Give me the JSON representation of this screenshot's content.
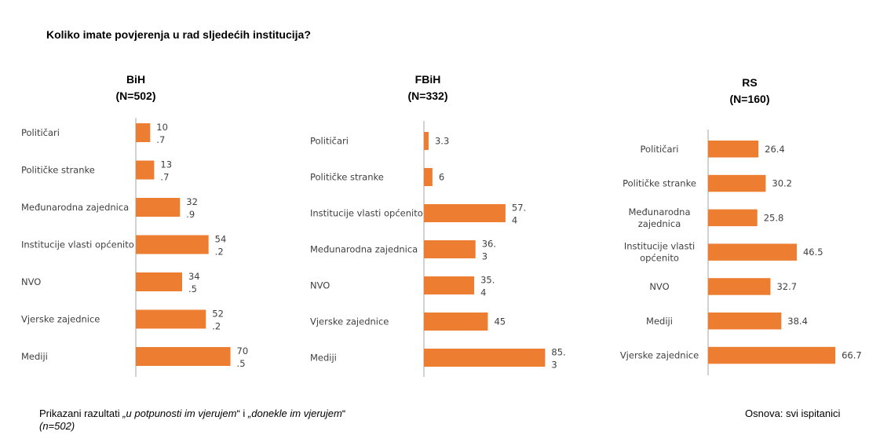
{
  "title": "Koliko imate povjerenja u rad sljedećih institucija?",
  "footer": {
    "note_prefix": "Prikazani razultati ",
    "note_em1": "„u potpunosti im vjerujem",
    "note_mid": "“ i ",
    "note_em2": "„donekle im vjerujem",
    "note_suffix": "“",
    "note_n": "(n=502)",
    "basis": "Osnova: svi ispitanici"
  },
  "colors": {
    "bar": "#ED7D31",
    "axis": "#A6A6A6",
    "text": "#404040"
  },
  "chart_data": [
    {
      "type": "bar",
      "orientation": "horizontal",
      "title": "BiH",
      "subtitle": "(N=502)",
      "categories": [
        "Političari",
        "Političke stranke",
        "Međunarodna zajednica",
        "Institucije vlasti općenito",
        "NVO",
        "Vjerske zajednice",
        "Mediji"
      ],
      "values": [
        10.7,
        13.7,
        32.9,
        54.2,
        34.5,
        52.2,
        70.5
      ],
      "value_labels": [
        [
          "10",
          ".7"
        ],
        [
          "13",
          ".7"
        ],
        [
          "32",
          ".9"
        ],
        [
          "54",
          ".2"
        ],
        [
          "34",
          ".5"
        ],
        [
          "52",
          ".2"
        ],
        [
          "70",
          ".5"
        ]
      ]
    },
    {
      "type": "bar",
      "orientation": "horizontal",
      "title": "FBiH",
      "subtitle": "(N=332)",
      "categories": [
        "Političari",
        "Političke stranke",
        "Institucije vlasti općenito",
        "Međunarodna zajednica",
        "NVO",
        "Vjerske zajednice",
        "Mediji"
      ],
      "values": [
        3.3,
        6,
        57.4,
        36.3,
        35.4,
        45,
        85.3
      ],
      "value_labels": [
        [
          "3.3"
        ],
        [
          "6"
        ],
        [
          "57.",
          "4"
        ],
        [
          "36.",
          "3"
        ],
        [
          "35.",
          "4"
        ],
        [
          "45"
        ],
        [
          "85.",
          "3"
        ]
      ]
    },
    {
      "type": "bar",
      "orientation": "horizontal",
      "title": "RS",
      "subtitle": "(N=160)",
      "categories": [
        [
          "Političari"
        ],
        [
          "Političke stranke"
        ],
        [
          "Međunarodna",
          "zajednica"
        ],
        [
          "Institucije vlasti",
          "općenito"
        ],
        [
          "NVO"
        ],
        [
          "Mediji"
        ],
        [
          "Vjerske zajednice"
        ]
      ],
      "values": [
        26.4,
        30.2,
        25.8,
        46.5,
        32.7,
        38.4,
        66.7
      ],
      "value_labels": [
        [
          "26.4"
        ],
        [
          "30.2"
        ],
        [
          "25.8"
        ],
        [
          "46.5"
        ],
        [
          "32.7"
        ],
        [
          "38.4"
        ],
        [
          "66.7"
        ]
      ]
    }
  ]
}
